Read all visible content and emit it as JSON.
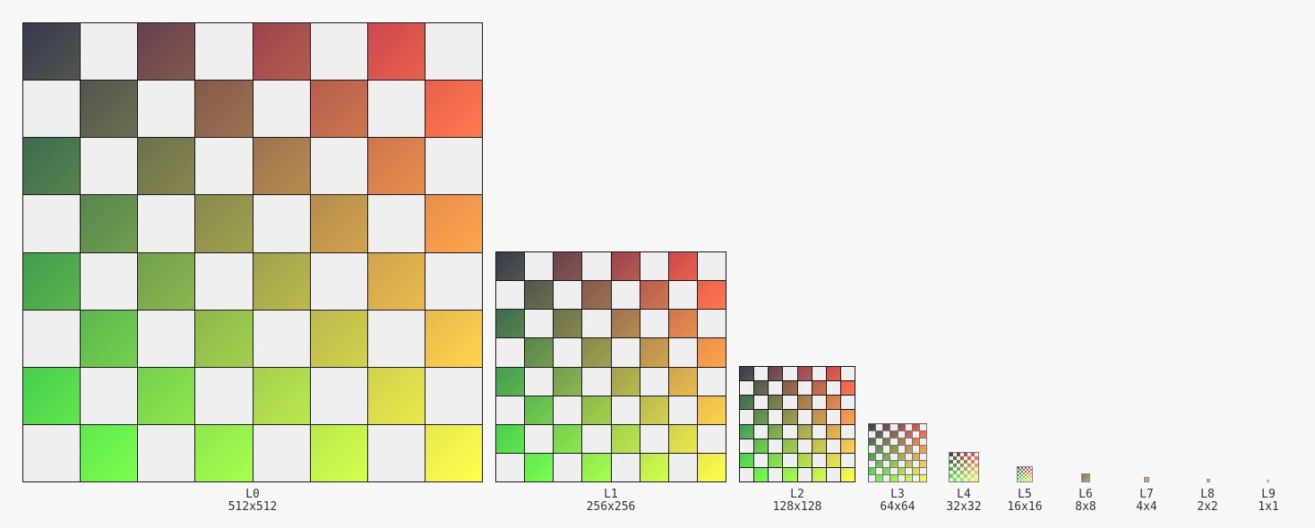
{
  "mip_levels": [
    {
      "name": "L0",
      "size": "512x512"
    },
    {
      "name": "L1",
      "size": "256x256"
    },
    {
      "name": "L2",
      "size": "128x128"
    },
    {
      "name": "L3",
      "size": "64x64"
    },
    {
      "name": "L4",
      "size": "32x32"
    },
    {
      "name": "L5",
      "size": "16x16"
    },
    {
      "name": "L6",
      "size": "8x8"
    },
    {
      "name": "L7",
      "size": "4x4"
    },
    {
      "name": "L8",
      "size": "2x2"
    },
    {
      "name": "L9",
      "size": "1x1"
    }
  ],
  "texture": {
    "checker_grid": 8,
    "light_square_color": "#efefef",
    "corner_colors": {
      "top_left": "#363a4f",
      "top_right": "#ff4d4d",
      "bottom_left": "#4dff4d",
      "bottom_right": "#ffff4d"
    },
    "mean_color": "#c4b57e"
  }
}
